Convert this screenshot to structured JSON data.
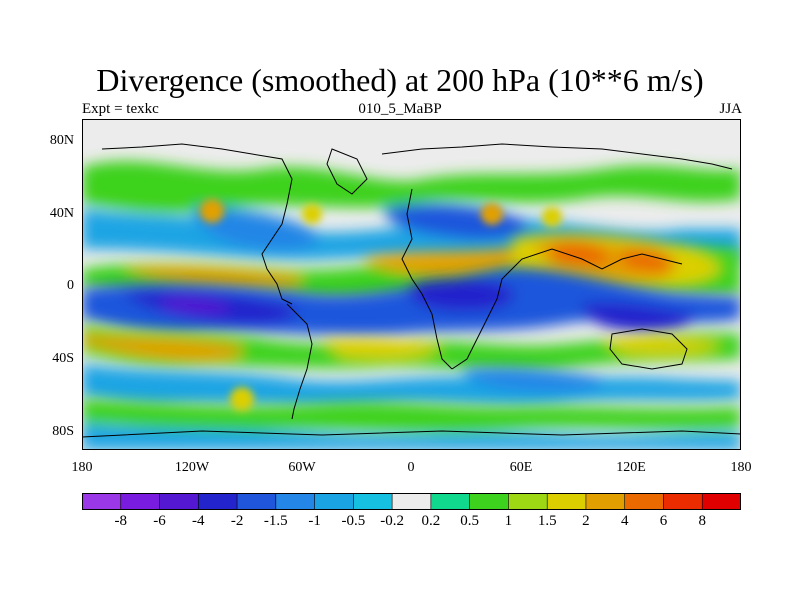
{
  "title": "Divergence (smoothed) at 200 hPa (10**6 m/s)",
  "left_label": "Expt = texkc",
  "center_label": "010_5_MaBP",
  "right_label": "JJA",
  "y_ticks": [
    "80N",
    "40N",
    "0",
    "40S",
    "80S"
  ],
  "x_ticks": [
    "180",
    "120W",
    "60W",
    "0",
    "60E",
    "120E",
    "180"
  ],
  "colorbar": {
    "labels": [
      "-8",
      "-6",
      "-4",
      "-2",
      "-1.5",
      "-1",
      "-0.5",
      "-0.2",
      "0.2",
      "0.5",
      "1",
      "1.5",
      "2",
      "4",
      "6",
      "8"
    ],
    "colors": [
      "#9a38e8",
      "#7a1be0",
      "#5417d2",
      "#2424cc",
      "#1f56dc",
      "#2486e6",
      "#1aa4e4",
      "#16c0e0",
      "#ececec",
      "#10d88c",
      "#3cd21e",
      "#9ed814",
      "#dccf00",
      "#e2a000",
      "#ea6a00",
      "#ea2c00",
      "#e00000"
    ]
  },
  "colors": {
    "land": "#e8e8e8",
    "coast": "#000000"
  }
}
